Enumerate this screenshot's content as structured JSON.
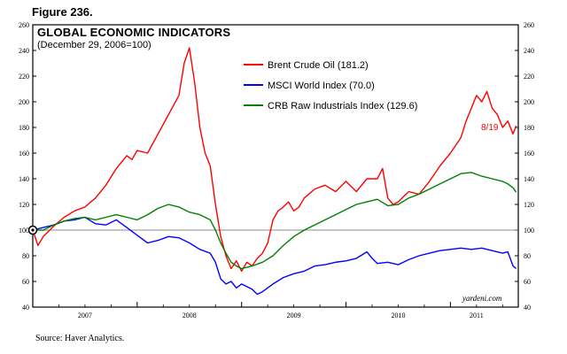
{
  "figure_label": "Figure 236.",
  "source": "Source: Haver Analytics.",
  "chart_data": {
    "type": "line",
    "title": "GLOBAL ECONOMIC INDICATORS",
    "subtitle": "(December 29, 2006=100)",
    "credit": "yardeni.com",
    "end_annotation": "8/19",
    "ylim": [
      40,
      260
    ],
    "yticks": [
      40,
      60,
      80,
      100,
      120,
      140,
      160,
      180,
      200,
      220,
      240,
      260
    ],
    "xlim": [
      2007.0,
      2011.65
    ],
    "x_labels": [
      {
        "x": 2007.5,
        "label": "2007"
      },
      {
        "x": 2008.5,
        "label": "2008"
      },
      {
        "x": 2009.5,
        "label": "2009"
      },
      {
        "x": 2010.5,
        "label": "2010"
      },
      {
        "x": 2011.25,
        "label": "2011"
      }
    ],
    "reference_line": 100,
    "series": [
      {
        "name": "Brent Crude Oil",
        "legend": "Brent Crude Oil (181.2)",
        "color": "#ff0000",
        "points": [
          [
            2007.0,
            100
          ],
          [
            2007.05,
            88
          ],
          [
            2007.1,
            95
          ],
          [
            2007.2,
            103
          ],
          [
            2007.3,
            110
          ],
          [
            2007.4,
            115
          ],
          [
            2007.5,
            118
          ],
          [
            2007.6,
            125
          ],
          [
            2007.7,
            135
          ],
          [
            2007.8,
            148
          ],
          [
            2007.9,
            158
          ],
          [
            2007.95,
            155
          ],
          [
            2008.0,
            162
          ],
          [
            2008.1,
            160
          ],
          [
            2008.2,
            175
          ],
          [
            2008.3,
            190
          ],
          [
            2008.4,
            205
          ],
          [
            2008.45,
            230
          ],
          [
            2008.5,
            242
          ],
          [
            2008.55,
            215
          ],
          [
            2008.6,
            180
          ],
          [
            2008.65,
            160
          ],
          [
            2008.7,
            150
          ],
          [
            2008.75,
            120
          ],
          [
            2008.8,
            95
          ],
          [
            2008.85,
            80
          ],
          [
            2008.9,
            70
          ],
          [
            2008.95,
            76
          ],
          [
            2009.0,
            68
          ],
          [
            2009.05,
            75
          ],
          [
            2009.1,
            72
          ],
          [
            2009.15,
            78
          ],
          [
            2009.2,
            82
          ],
          [
            2009.25,
            90
          ],
          [
            2009.3,
            108
          ],
          [
            2009.35,
            115
          ],
          [
            2009.4,
            118
          ],
          [
            2009.45,
            122
          ],
          [
            2009.5,
            115
          ],
          [
            2009.55,
            118
          ],
          [
            2009.6,
            125
          ],
          [
            2009.7,
            132
          ],
          [
            2009.8,
            135
          ],
          [
            2009.9,
            130
          ],
          [
            2010.0,
            138
          ],
          [
            2010.1,
            130
          ],
          [
            2010.2,
            140
          ],
          [
            2010.3,
            140
          ],
          [
            2010.35,
            148
          ],
          [
            2010.4,
            125
          ],
          [
            2010.45,
            120
          ],
          [
            2010.5,
            122
          ],
          [
            2010.6,
            130
          ],
          [
            2010.7,
            128
          ],
          [
            2010.8,
            138
          ],
          [
            2010.9,
            150
          ],
          [
            2011.0,
            160
          ],
          [
            2011.1,
            172
          ],
          [
            2011.15,
            185
          ],
          [
            2011.2,
            195
          ],
          [
            2011.25,
            205
          ],
          [
            2011.3,
            200
          ],
          [
            2011.35,
            208
          ],
          [
            2011.4,
            195
          ],
          [
            2011.45,
            190
          ],
          [
            2011.5,
            180
          ],
          [
            2011.55,
            185
          ],
          [
            2011.6,
            175
          ],
          [
            2011.63,
            181.2
          ]
        ]
      },
      {
        "name": "MSCI World Index",
        "legend": "MSCI World Index (70.0)",
        "color": "#0000ff",
        "points": [
          [
            2007.0,
            100
          ],
          [
            2007.1,
            102
          ],
          [
            2007.2,
            104
          ],
          [
            2007.3,
            107
          ],
          [
            2007.4,
            108
          ],
          [
            2007.5,
            110
          ],
          [
            2007.6,
            105
          ],
          [
            2007.7,
            104
          ],
          [
            2007.8,
            108
          ],
          [
            2007.9,
            102
          ],
          [
            2008.0,
            96
          ],
          [
            2008.1,
            90
          ],
          [
            2008.2,
            92
          ],
          [
            2008.3,
            95
          ],
          [
            2008.4,
            94
          ],
          [
            2008.5,
            90
          ],
          [
            2008.6,
            85
          ],
          [
            2008.7,
            82
          ],
          [
            2008.75,
            75
          ],
          [
            2008.8,
            62
          ],
          [
            2008.85,
            58
          ],
          [
            2008.9,
            60
          ],
          [
            2008.95,
            55
          ],
          [
            2009.0,
            58
          ],
          [
            2009.1,
            54
          ],
          [
            2009.15,
            50
          ],
          [
            2009.2,
            52
          ],
          [
            2009.3,
            58
          ],
          [
            2009.4,
            63
          ],
          [
            2009.5,
            66
          ],
          [
            2009.6,
            68
          ],
          [
            2009.7,
            72
          ],
          [
            2009.8,
            73
          ],
          [
            2009.9,
            75
          ],
          [
            2010.0,
            76
          ],
          [
            2010.1,
            78
          ],
          [
            2010.2,
            83
          ],
          [
            2010.25,
            78
          ],
          [
            2010.3,
            74
          ],
          [
            2010.4,
            75
          ],
          [
            2010.5,
            73
          ],
          [
            2010.6,
            77
          ],
          [
            2010.7,
            80
          ],
          [
            2010.8,
            82
          ],
          [
            2010.9,
            84
          ],
          [
            2011.0,
            85
          ],
          [
            2011.1,
            86
          ],
          [
            2011.2,
            85
          ],
          [
            2011.3,
            86
          ],
          [
            2011.4,
            84
          ],
          [
            2011.5,
            82
          ],
          [
            2011.55,
            83
          ],
          [
            2011.6,
            72
          ],
          [
            2011.63,
            70
          ]
        ]
      },
      {
        "name": "CRB Raw Industrials Index",
        "legend": "CRB Raw Industrials Index (129.6)",
        "color": "#008000",
        "points": [
          [
            2007.0,
            100
          ],
          [
            2007.1,
            100
          ],
          [
            2007.2,
            104
          ],
          [
            2007.3,
            107
          ],
          [
            2007.4,
            109
          ],
          [
            2007.5,
            110
          ],
          [
            2007.6,
            108
          ],
          [
            2007.7,
            110
          ],
          [
            2007.8,
            112
          ],
          [
            2007.9,
            110
          ],
          [
            2008.0,
            108
          ],
          [
            2008.1,
            112
          ],
          [
            2008.2,
            117
          ],
          [
            2008.3,
            120
          ],
          [
            2008.4,
            118
          ],
          [
            2008.5,
            114
          ],
          [
            2008.6,
            112
          ],
          [
            2008.7,
            108
          ],
          [
            2008.75,
            100
          ],
          [
            2008.8,
            90
          ],
          [
            2008.85,
            82
          ],
          [
            2008.9,
            75
          ],
          [
            2008.95,
            72
          ],
          [
            2009.0,
            70
          ],
          [
            2009.1,
            72
          ],
          [
            2009.2,
            75
          ],
          [
            2009.3,
            80
          ],
          [
            2009.4,
            88
          ],
          [
            2009.5,
            95
          ],
          [
            2009.6,
            100
          ],
          [
            2009.7,
            104
          ],
          [
            2009.8,
            108
          ],
          [
            2009.9,
            112
          ],
          [
            2010.0,
            116
          ],
          [
            2010.1,
            120
          ],
          [
            2010.2,
            122
          ],
          [
            2010.3,
            124
          ],
          [
            2010.4,
            119
          ],
          [
            2010.5,
            120
          ],
          [
            2010.6,
            125
          ],
          [
            2010.7,
            128
          ],
          [
            2010.8,
            132
          ],
          [
            2010.9,
            136
          ],
          [
            2011.0,
            140
          ],
          [
            2011.1,
            144
          ],
          [
            2011.2,
            145
          ],
          [
            2011.3,
            142
          ],
          [
            2011.4,
            140
          ],
          [
            2011.5,
            138
          ],
          [
            2011.55,
            136
          ],
          [
            2011.6,
            133
          ],
          [
            2011.63,
            129.6
          ]
        ]
      }
    ]
  }
}
